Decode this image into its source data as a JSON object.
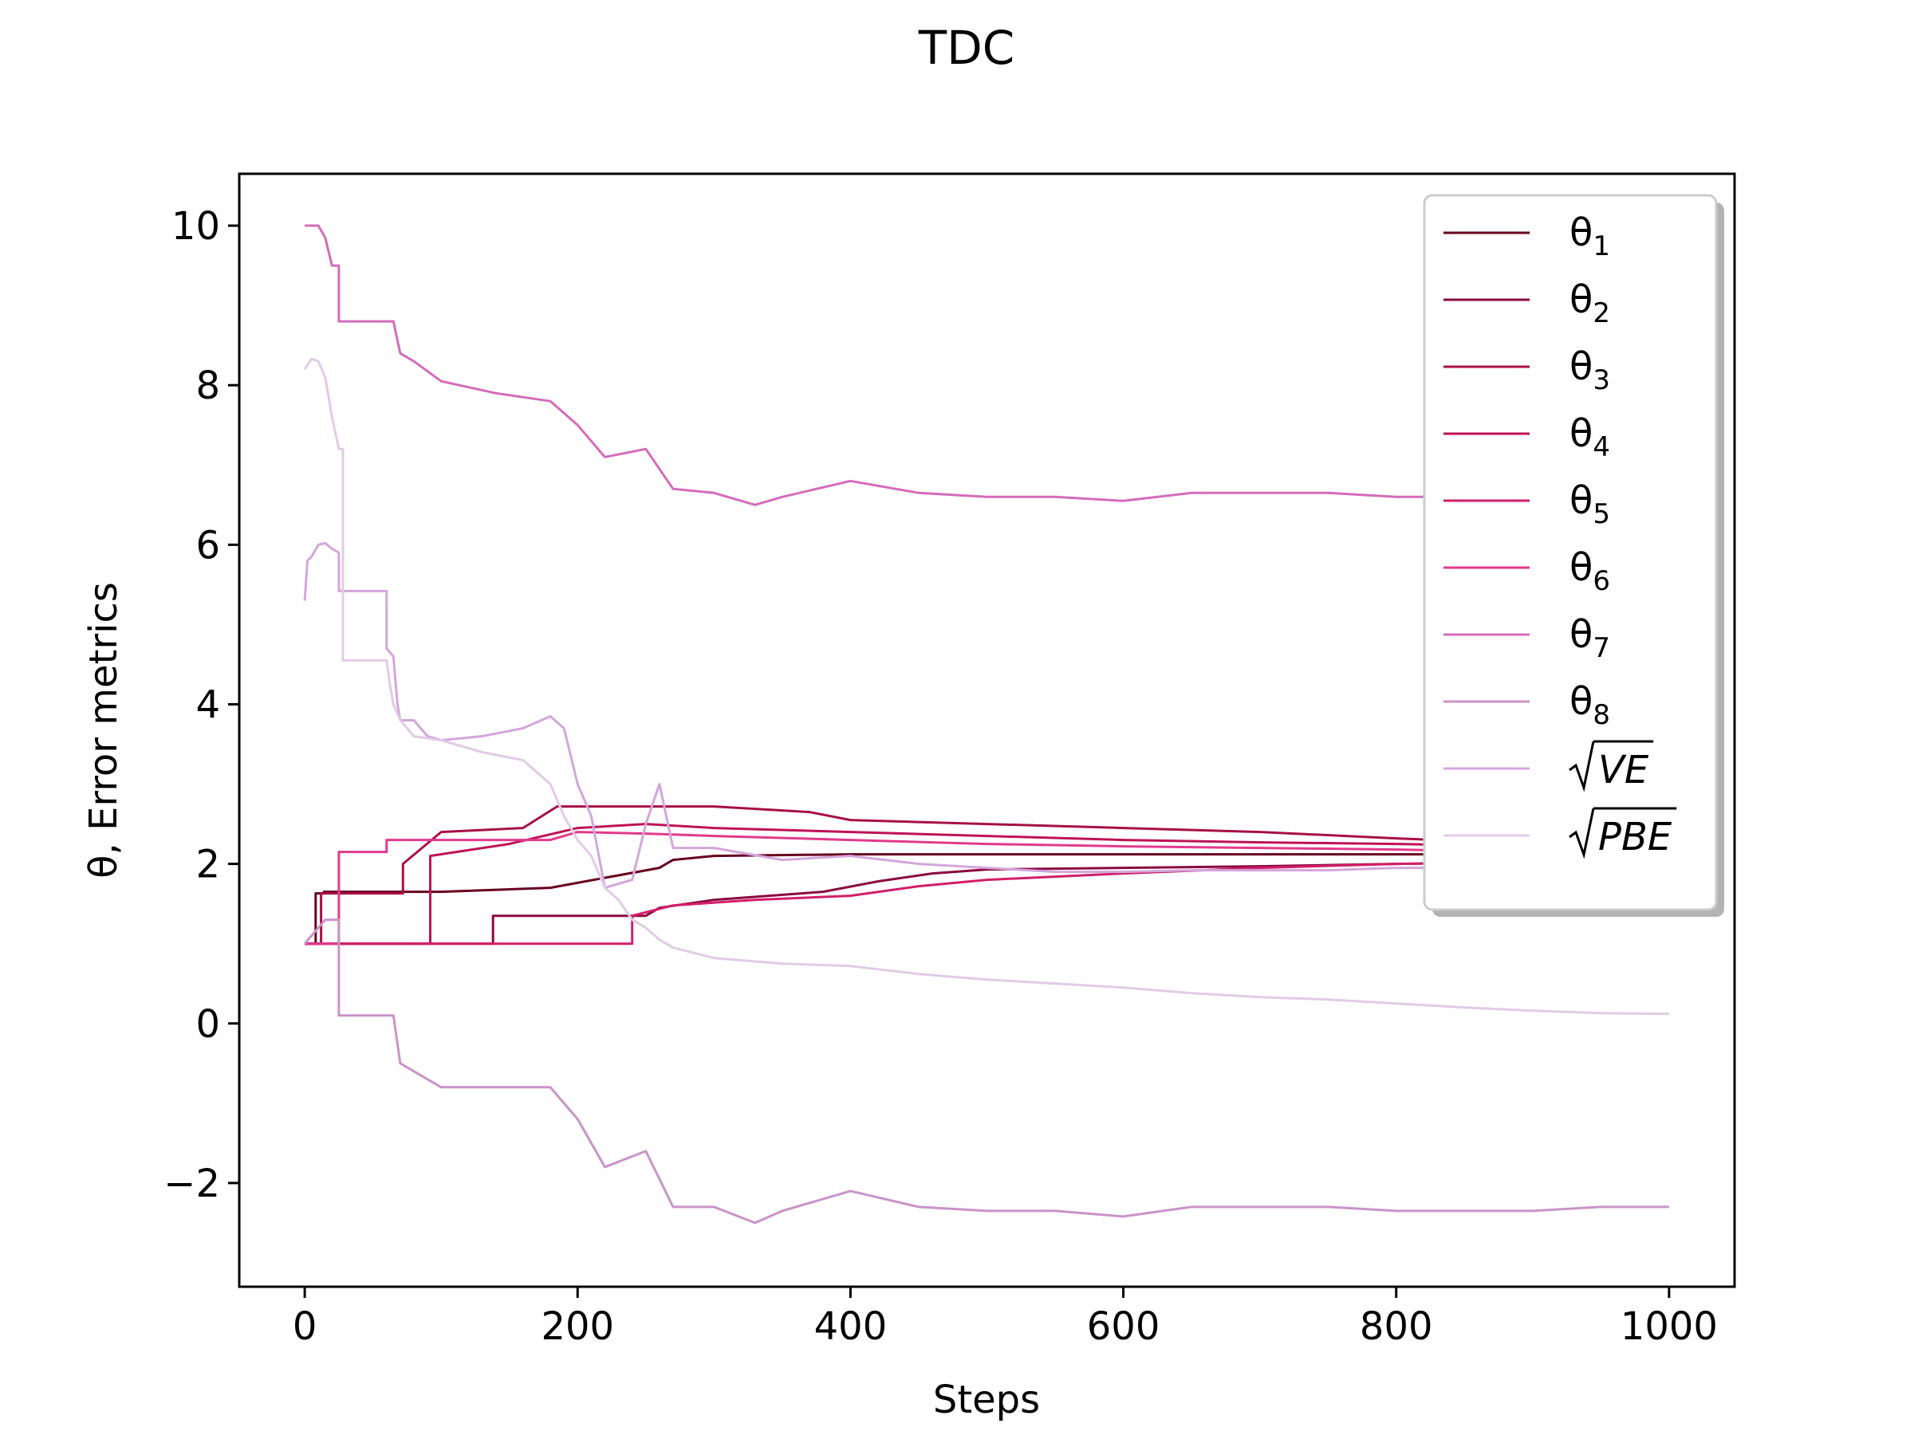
{
  "chart_data": {
    "type": "line",
    "title": "TDC",
    "xlabel": "Steps",
    "ylabel": "θ, Error metrics",
    "xlim": [
      -48,
      1048
    ],
    "ylim": [
      -3.3,
      10.65
    ],
    "xticks": [
      0,
      200,
      400,
      600,
      800,
      1000
    ],
    "xtick_labels": [
      "0",
      "200",
      "400",
      "600",
      "800",
      "1000"
    ],
    "yticks": [
      -2,
      0,
      2,
      4,
      6,
      8,
      10
    ],
    "ytick_labels": [
      "−2",
      "0",
      "2",
      "4",
      "6",
      "8",
      "10"
    ],
    "grid": false,
    "legend_position": "top-right",
    "series": [
      {
        "name": "θ1",
        "legend_main": "θ",
        "legend_sub": "1",
        "color": "#67001f",
        "x": [
          0,
          8,
          8,
          14,
          14,
          100,
          180,
          260,
          270,
          300,
          400,
          500,
          600,
          700,
          800,
          900,
          1000
        ],
        "y": [
          1.0,
          1.0,
          1.63,
          1.63,
          1.65,
          1.65,
          1.7,
          1.95,
          2.05,
          2.1,
          2.12,
          2.12,
          2.12,
          2.12,
          2.12,
          2.12,
          2.12
        ]
      },
      {
        "name": "θ2",
        "legend_main": "θ",
        "legend_sub": "2",
        "color": "#8a0a3f",
        "x": [
          0,
          138,
          138,
          250,
          260,
          300,
          380,
          420,
          460,
          500,
          600,
          700,
          800,
          900,
          1000
        ],
        "y": [
          1.0,
          1.0,
          1.35,
          1.35,
          1.45,
          1.55,
          1.65,
          1.78,
          1.88,
          1.93,
          1.95,
          1.97,
          2.0,
          2.02,
          2.05
        ]
      },
      {
        "name": "θ3",
        "legend_main": "θ",
        "legend_sub": "3",
        "color": "#a81046",
        "x": [
          0,
          12,
          12,
          72,
          72,
          100,
          160,
          185,
          240,
          300,
          370,
          400,
          500,
          600,
          700,
          800,
          900,
          1000
        ],
        "y": [
          1.0,
          1.0,
          1.63,
          1.63,
          2.0,
          2.4,
          2.45,
          2.72,
          2.72,
          2.72,
          2.65,
          2.55,
          2.5,
          2.45,
          2.4,
          2.32,
          2.25,
          2.2
        ]
      },
      {
        "name": "θ4",
        "legend_main": "θ",
        "legend_sub": "4",
        "color": "#bf1257",
        "x": [
          0,
          92,
          92,
          150,
          200,
          250,
          300,
          400,
          500,
          600,
          700,
          800,
          900,
          1000
        ],
        "y": [
          1.0,
          1.0,
          2.1,
          2.25,
          2.45,
          2.5,
          2.45,
          2.4,
          2.35,
          2.3,
          2.27,
          2.25,
          2.22,
          2.2
        ]
      },
      {
        "name": "θ5",
        "legend_main": "θ",
        "legend_sub": "5",
        "color": "#d21e6a",
        "x": [
          0,
          240,
          240,
          270,
          330,
          400,
          450,
          500,
          600,
          700,
          800,
          900,
          1000
        ],
        "y": [
          1.0,
          1.0,
          1.35,
          1.48,
          1.55,
          1.6,
          1.72,
          1.8,
          1.88,
          1.95,
          2.0,
          2.02,
          2.05
        ]
      },
      {
        "name": "θ6",
        "legend_main": "θ",
        "legend_sub": "6",
        "color": "#e2398c",
        "x": [
          0,
          25,
          25,
          60,
          60,
          180,
          200,
          250,
          300,
          400,
          500,
          600,
          700,
          800,
          900,
          1000
        ],
        "y": [
          1.0,
          1.0,
          2.15,
          2.15,
          2.3,
          2.3,
          2.4,
          2.38,
          2.35,
          2.3,
          2.25,
          2.22,
          2.2,
          2.18,
          2.15,
          2.15
        ]
      },
      {
        "name": "θ7",
        "legend_main": "θ",
        "legend_sub": "7",
        "color": "#d46cba",
        "x": [
          0,
          10,
          15,
          20,
          25,
          25,
          65,
          70,
          80,
          100,
          140,
          180,
          200,
          220,
          250,
          270,
          300,
          330,
          350,
          400,
          450,
          500,
          550,
          600,
          650,
          700,
          750,
          800,
          850,
          900,
          950,
          1000
        ],
        "y": [
          10.0,
          10.0,
          9.85,
          9.5,
          9.5,
          8.8,
          8.8,
          8.4,
          8.3,
          8.05,
          7.9,
          7.8,
          7.5,
          7.1,
          7.2,
          6.7,
          6.65,
          6.5,
          6.6,
          6.8,
          6.65,
          6.6,
          6.6,
          6.55,
          6.65,
          6.65,
          6.65,
          6.6,
          6.6,
          6.6,
          6.6,
          6.6
        ]
      },
      {
        "name": "θ8",
        "legend_main": "θ",
        "legend_sub": "8",
        "color": "#c994c7",
        "x": [
          0,
          10,
          15,
          25,
          25,
          65,
          70,
          80,
          100,
          140,
          180,
          200,
          220,
          250,
          270,
          300,
          330,
          350,
          400,
          450,
          500,
          550,
          600,
          650,
          700,
          750,
          800,
          850,
          900,
          950,
          1000
        ],
        "y": [
          1.0,
          1.2,
          1.3,
          1.3,
          0.1,
          0.1,
          -0.5,
          -0.6,
          -0.8,
          -0.8,
          -0.8,
          -1.2,
          -1.8,
          -1.6,
          -2.3,
          -2.3,
          -2.5,
          -2.35,
          -2.1,
          -2.3,
          -2.35,
          -2.35,
          -2.42,
          -2.3,
          -2.3,
          -2.3,
          -2.35,
          -2.35,
          -2.35,
          -2.3,
          -2.3
        ]
      },
      {
        "name": "√VE",
        "legend_main": "VE",
        "legend_sub": "",
        "color": "#d4a6dc",
        "x": [
          0,
          2,
          5,
          10,
          15,
          20,
          25,
          25,
          60,
          60,
          65,
          68,
          70,
          80,
          90,
          100,
          130,
          160,
          180,
          190,
          200,
          210,
          220,
          240,
          250,
          260,
          270,
          300,
          350,
          400,
          450,
          500,
          550,
          600,
          650,
          700,
          750,
          800,
          850,
          900,
          950,
          1000
        ],
        "y": [
          5.3,
          5.8,
          5.85,
          6.0,
          6.02,
          5.95,
          5.9,
          5.42,
          5.42,
          4.7,
          4.6,
          4.0,
          3.8,
          3.8,
          3.6,
          3.55,
          3.6,
          3.7,
          3.85,
          3.7,
          3.0,
          2.6,
          1.7,
          1.8,
          2.5,
          3.0,
          2.2,
          2.2,
          2.05,
          2.1,
          2.0,
          1.95,
          1.9,
          1.9,
          1.92,
          1.92,
          1.92,
          1.95,
          1.95,
          1.95,
          1.95,
          1.95
        ]
      },
      {
        "name": "√PBE",
        "legend_main": "PBE",
        "legend_sub": "",
        "color": "#e2cbe6",
        "x": [
          0,
          5,
          10,
          15,
          20,
          25,
          28,
          28,
          60,
          62,
          65,
          70,
          80,
          100,
          130,
          160,
          180,
          190,
          200,
          210,
          220,
          230,
          240,
          250,
          260,
          270,
          300,
          350,
          400,
          450,
          500,
          550,
          600,
          650,
          700,
          750,
          800,
          850,
          900,
          950,
          1000
        ],
        "y": [
          8.2,
          8.33,
          8.3,
          8.1,
          7.6,
          7.2,
          7.2,
          4.55,
          4.55,
          4.3,
          4.0,
          3.8,
          3.6,
          3.55,
          3.4,
          3.3,
          3.0,
          2.6,
          2.3,
          2.1,
          1.7,
          1.55,
          1.3,
          1.2,
          1.05,
          0.95,
          0.82,
          0.75,
          0.72,
          0.62,
          0.55,
          0.5,
          0.45,
          0.38,
          0.33,
          0.3,
          0.25,
          0.2,
          0.16,
          0.13,
          0.12
        ]
      }
    ]
  }
}
